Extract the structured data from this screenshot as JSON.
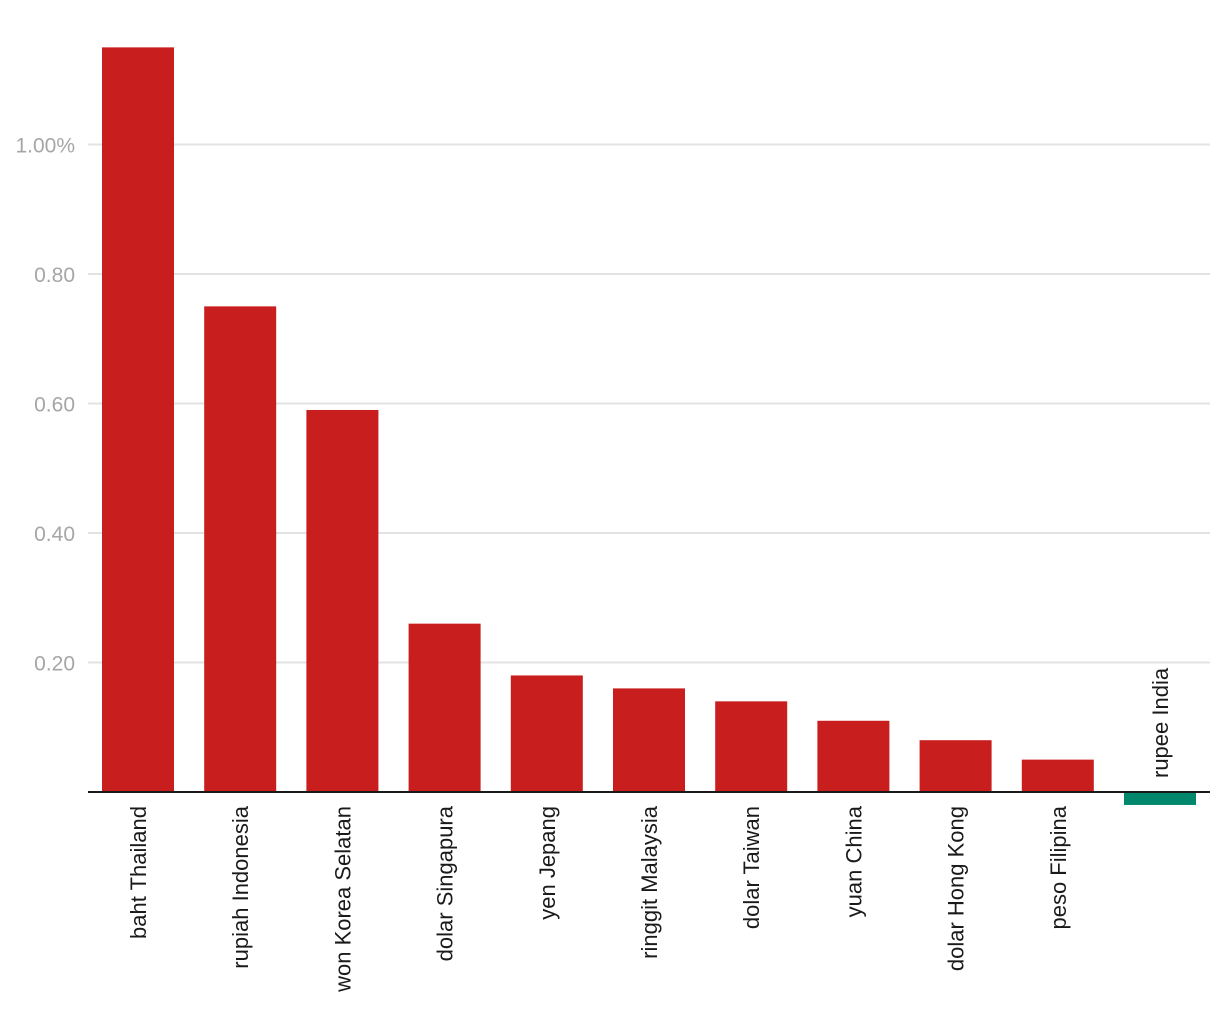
{
  "chart_data": {
    "type": "bar",
    "title": "",
    "xlabel": "",
    "ylabel": "",
    "categories": [
      "baht Thailand",
      "rupiah Indonesia",
      "won Korea Selatan",
      "dolar Singapura",
      "yen Jepang",
      "ringgit Malaysia",
      "dolar Taiwan",
      "yuan China",
      "dolar Hong Kong",
      "peso Filipina",
      "rupee India"
    ],
    "values": [
      1.15,
      0.75,
      0.59,
      0.26,
      0.18,
      0.16,
      0.14,
      0.11,
      0.08,
      0.05,
      -0.02
    ],
    "ylim": [
      -0.02,
      1.16
    ],
    "yticks": [
      {
        "value": 0.2,
        "label": "0.20"
      },
      {
        "value": 0.4,
        "label": "0.40"
      },
      {
        "value": 0.6,
        "label": "0.60"
      },
      {
        "value": 0.8,
        "label": "0.80"
      },
      {
        "value": 1.0,
        "label": "1.00%"
      }
    ],
    "grid": true,
    "legend": "none",
    "colors": {
      "positive": "#c81e1e",
      "negative": "#00876c"
    }
  }
}
